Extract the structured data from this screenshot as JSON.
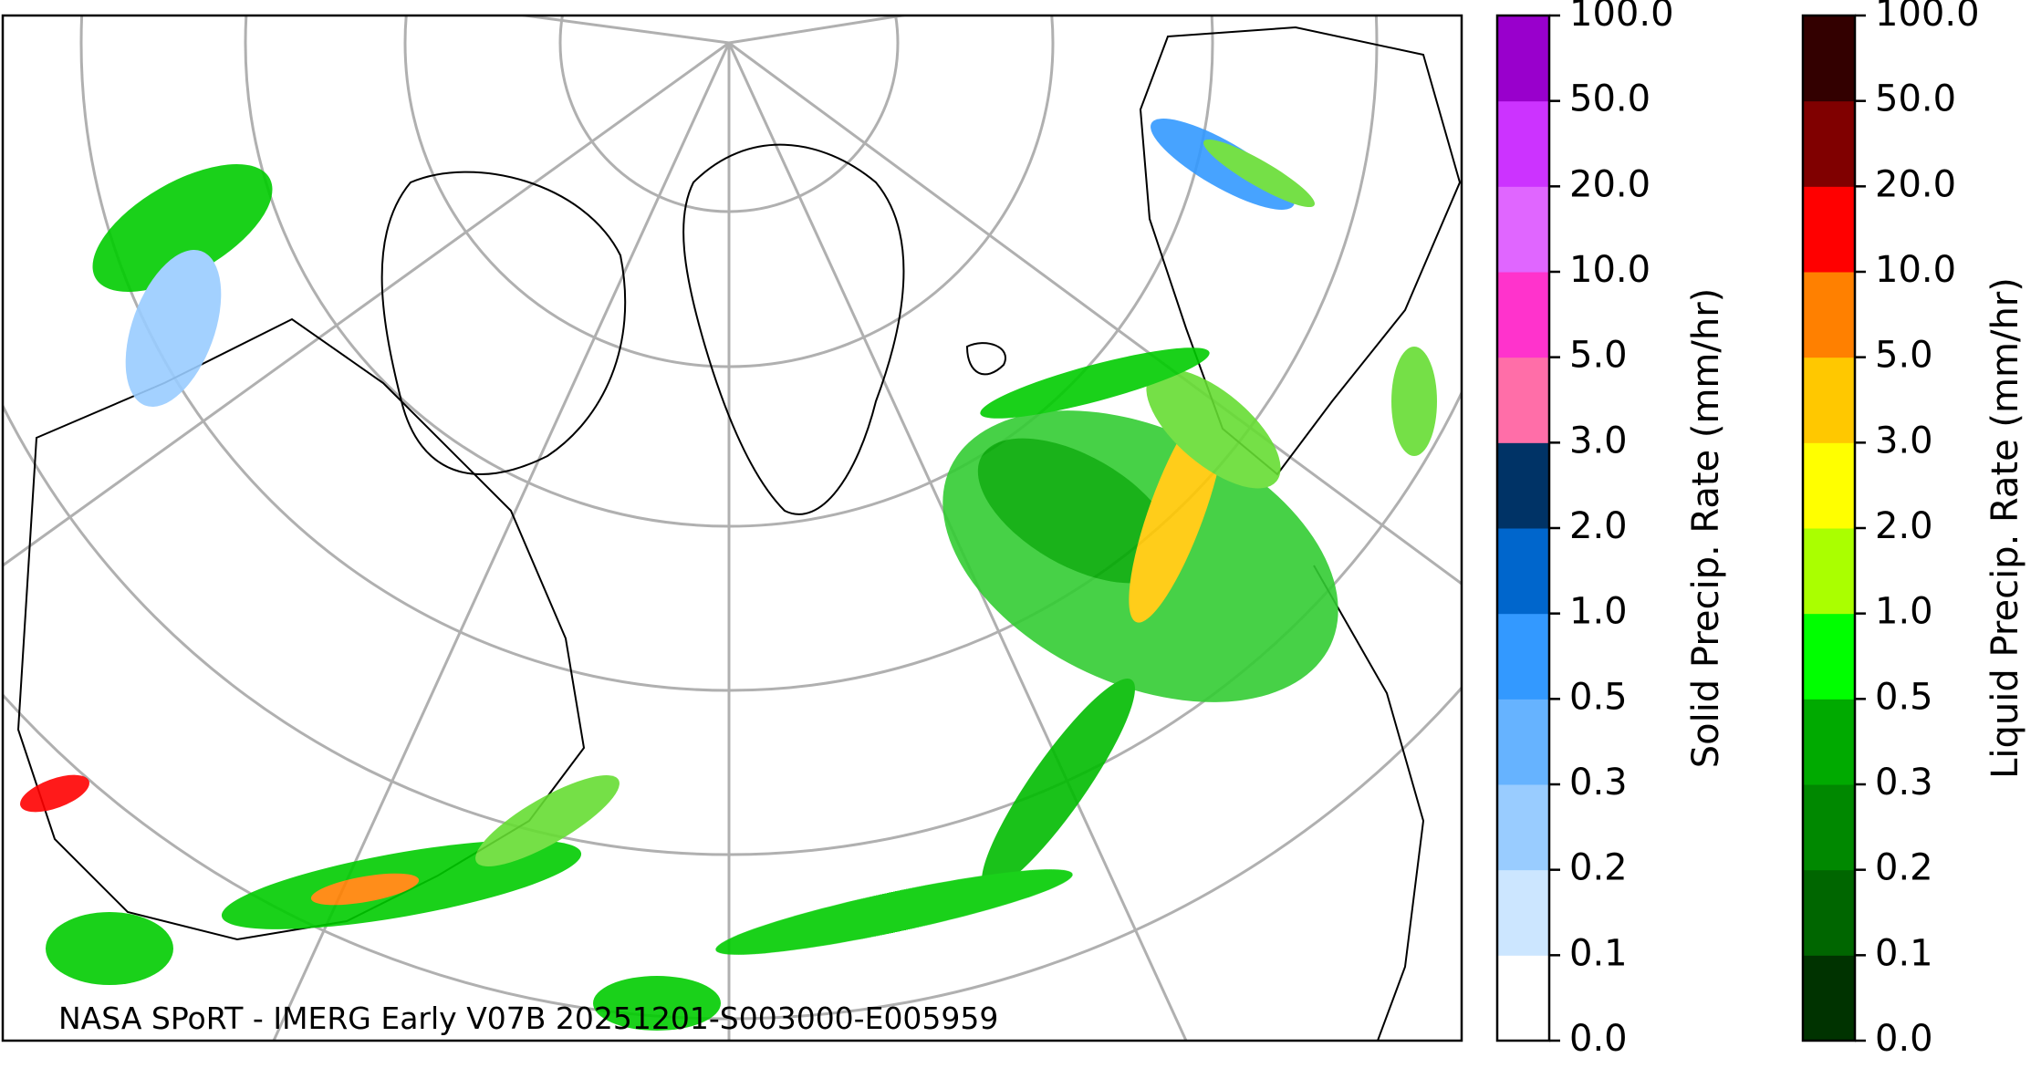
{
  "map": {
    "credit": "NASA SPoRT - IMERG Early V07B 20251201-S003000-E005959"
  },
  "colorbars": [
    {
      "label": "Solid Precip. Rate (mm/hr)",
      "ticks": [
        {
          "value": 0,
          "label": "0.0"
        },
        {
          "value": 0.1,
          "label": "0.1"
        },
        {
          "value": 0.2,
          "label": "0.2"
        },
        {
          "value": 0.3,
          "label": "0.3"
        },
        {
          "value": 0.5,
          "label": "0.5"
        },
        {
          "value": 1,
          "label": "1.0"
        },
        {
          "value": 2,
          "label": "2.0"
        },
        {
          "value": 3,
          "label": "3.0"
        },
        {
          "value": 5,
          "label": "5.0"
        },
        {
          "value": 10,
          "label": "10.0"
        },
        {
          "value": 20,
          "label": "20.0"
        },
        {
          "value": 50,
          "label": "50.0"
        },
        {
          "value": 100,
          "label": "100.0"
        }
      ],
      "colors": [
        "#ffffff",
        "#cce6ff",
        "#99ccff",
        "#66b3ff",
        "#3399ff",
        "#0066cc",
        "#003366",
        "#ff6ea8",
        "#ff33cc",
        "#e066ff",
        "#cc33ff",
        "#9900cc"
      ]
    },
    {
      "label": "Liquid Precip. Rate (mm/hr)",
      "ticks": [
        {
          "value": 0,
          "label": "0.0"
        },
        {
          "value": 0.1,
          "label": "0.1"
        },
        {
          "value": 0.2,
          "label": "0.2"
        },
        {
          "value": 0.3,
          "label": "0.3"
        },
        {
          "value": 0.5,
          "label": "0.5"
        },
        {
          "value": 1,
          "label": "1.0"
        },
        {
          "value": 2,
          "label": "2.0"
        },
        {
          "value": 3,
          "label": "3.0"
        },
        {
          "value": 5,
          "label": "5.0"
        },
        {
          "value": 10,
          "label": "10.0"
        },
        {
          "value": 20,
          "label": "20.0"
        },
        {
          "value": 50,
          "label": "50.0"
        },
        {
          "value": 100,
          "label": "100.0"
        }
      ],
      "colors": [
        "#ffffff",
        "#003300",
        "#006600",
        "#008800",
        "#00aa00",
        "#00ff00",
        "#aaff00",
        "#ffff00",
        "#ffc800",
        "#ff8000",
        "#ff0000",
        "#800000",
        "#330000"
      ]
    }
  ]
}
